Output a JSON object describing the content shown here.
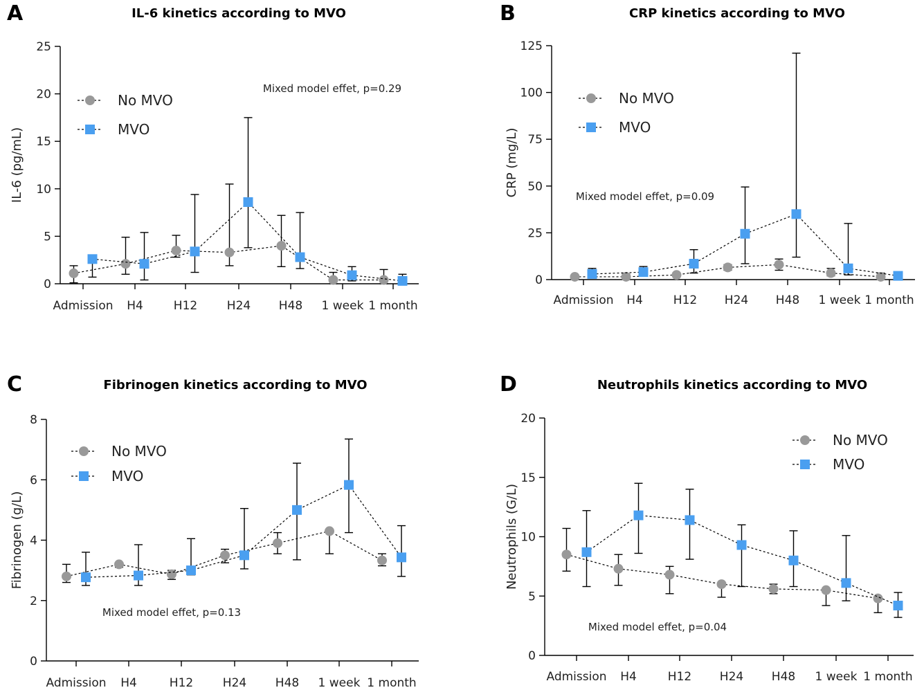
{
  "colors": {
    "no_mvo": "#999999",
    "mvo": "#4a9ff0",
    "axis": "#000000"
  },
  "marker_shapes": {
    "no_mvo": "circle",
    "mvo": "square"
  },
  "chart_data": [
    {
      "panel": "A",
      "type": "line",
      "title": "IL-6 kinetics according to MVO",
      "ylabel": "IL-6 (pg/mL)",
      "xlabel": "",
      "categories": [
        "Admission",
        "H4",
        "H12",
        "H24",
        "H48",
        "1 week",
        "1 month"
      ],
      "ylim": [
        0,
        25
      ],
      "yticks": [
        0,
        5,
        10,
        15,
        20,
        25
      ],
      "legend_position": "top-left",
      "annotation": "Mixed model effet, p=0.29",
      "series": [
        {
          "name": "No MVO",
          "key": "no_mvo",
          "values": [
            1.1,
            2.1,
            3.5,
            3.3,
            4.0,
            0.4,
            0.4
          ],
          "lower": [
            0.1,
            1.0,
            2.8,
            1.9,
            1.8,
            0.0,
            0.0
          ],
          "upper": [
            1.9,
            4.9,
            5.1,
            10.5,
            7.2,
            1.2,
            1.5
          ]
        },
        {
          "name": "MVO",
          "key": "mvo",
          "values": [
            2.6,
            2.1,
            3.4,
            8.6,
            2.8,
            0.9,
            0.3
          ],
          "lower": [
            0.7,
            0.4,
            1.2,
            3.8,
            1.6,
            0.3,
            0.0
          ],
          "upper": [
            2.6,
            5.4,
            9.4,
            17.5,
            7.5,
            1.8,
            1.0
          ]
        }
      ]
    },
    {
      "panel": "B",
      "type": "line",
      "title": "CRP kinetics according to MVO",
      "ylabel": "CRP (mg/L)",
      "xlabel": "",
      "categories": [
        "Admission",
        "H4",
        "H12",
        "H24",
        "H48",
        "1 week",
        "1 month"
      ],
      "ylim": [
        0,
        125
      ],
      "yticks": [
        0,
        25,
        50,
        75,
        100,
        125
      ],
      "legend_position": "top-left",
      "annotation": "Mixed model effet, p=0.09",
      "series": [
        {
          "name": "No MVO",
          "key": "no_mvo",
          "values": [
            1.5,
            1.5,
            2.5,
            6.5,
            8.0,
            3.5,
            1.5
          ],
          "lower": [
            0.5,
            0.5,
            1.5,
            5.0,
            5.0,
            2.0,
            0.5
          ],
          "upper": [
            2.5,
            3.0,
            3.5,
            8.0,
            11.0,
            6.0,
            3.5
          ]
        },
        {
          "name": "MVO",
          "key": "mvo",
          "values": [
            3.0,
            4.0,
            8.5,
            24.5,
            35.0,
            6.0,
            2.0
          ],
          "lower": [
            1.0,
            2.0,
            3.5,
            8.5,
            12.0,
            2.5,
            1.0
          ],
          "upper": [
            6.0,
            7.0,
            16.0,
            49.5,
            121.0,
            30.0,
            3.0
          ]
        }
      ]
    },
    {
      "panel": "C",
      "type": "line",
      "title": "Fibrinogen kinetics according to MVO",
      "ylabel": "Fibrinogen (g/L)",
      "xlabel": "",
      "categories": [
        "Admission",
        "H4",
        "H12",
        "H24",
        "H48",
        "1 week",
        "1 month"
      ],
      "ylim": [
        0,
        8
      ],
      "yticks": [
        0,
        2,
        4,
        6,
        8
      ],
      "legend_position": "top-left",
      "annotation": "Mixed model effet, p=0.13",
      "series": [
        {
          "name": "No MVO",
          "key": "no_mvo",
          "values": [
            2.8,
            3.2,
            2.87,
            3.5,
            3.9,
            4.3,
            3.33
          ],
          "lower": [
            2.6,
            3.1,
            2.7,
            3.25,
            3.55,
            3.55,
            3.15
          ],
          "upper": [
            3.2,
            3.25,
            3.0,
            3.7,
            4.25,
            4.3,
            3.55
          ]
        },
        {
          "name": "MVO",
          "key": "mvo",
          "values": [
            2.77,
            2.83,
            3.0,
            3.5,
            5.0,
            5.83,
            3.43
          ],
          "lower": [
            2.5,
            2.5,
            2.85,
            3.05,
            3.35,
            4.25,
            2.8
          ],
          "upper": [
            3.6,
            3.85,
            4.05,
            5.05,
            6.55,
            7.35,
            4.48
          ]
        }
      ]
    },
    {
      "panel": "D",
      "type": "line",
      "title": "Neutrophils kinetics according to MVO",
      "ylabel": "Neutrophils (G/L)",
      "xlabel": "",
      "categories": [
        "Admission",
        "H4",
        "H12",
        "H24",
        "H48",
        "1 week",
        "1 month"
      ],
      "ylim": [
        0,
        20
      ],
      "yticks": [
        0,
        5,
        10,
        15,
        20
      ],
      "legend_position": "top-right",
      "annotation": "Mixed model effet, p=0.04",
      "series": [
        {
          "name": "No MVO",
          "key": "no_mvo",
          "values": [
            8.5,
            7.3,
            6.8,
            6.0,
            5.6,
            5.5,
            4.8
          ],
          "lower": [
            7.1,
            5.9,
            5.2,
            4.9,
            5.2,
            4.2,
            3.6
          ],
          "upper": [
            10.7,
            8.5,
            7.5,
            6.0,
            6.0,
            5.5,
            4.8
          ]
        },
        {
          "name": "MVO",
          "key": "mvo",
          "values": [
            8.7,
            11.8,
            11.4,
            9.3,
            8.0,
            6.1,
            4.2
          ],
          "lower": [
            5.8,
            8.6,
            8.1,
            5.8,
            5.8,
            4.6,
            3.2
          ],
          "upper": [
            12.2,
            14.5,
            14.0,
            11.0,
            10.5,
            10.1,
            5.3
          ]
        }
      ]
    }
  ]
}
